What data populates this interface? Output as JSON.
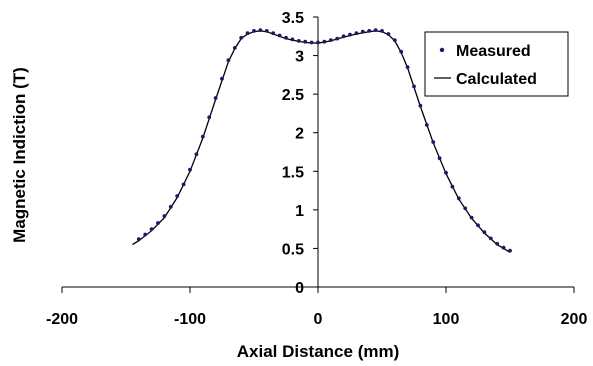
{
  "chart_data": {
    "type": "scatter",
    "title": "",
    "xlabel": "Axial Distance (mm)",
    "ylabel": "Magnetic Indiction (T)",
    "xlim": [
      -200,
      200
    ],
    "ylim": [
      0,
      3.5
    ],
    "xticks": [
      "-200",
      "-100",
      "0",
      "100",
      "200"
    ],
    "yticks": [
      "0",
      "0.5",
      "1",
      "1.5",
      "2",
      "2.5",
      "3",
      "3.5"
    ],
    "grid": false,
    "legend_position": "top-right",
    "colors": {
      "measured": "#1a1a66",
      "calculated": "#000000"
    },
    "series": [
      {
        "name": "Measured",
        "style": "markers",
        "x": [
          -140,
          -135,
          -130,
          -125,
          -120,
          -115,
          -110,
          -105,
          -100,
          -95,
          -90,
          -85,
          -80,
          -75,
          -70,
          -65,
          -60,
          -55,
          -50,
          -45,
          -40,
          -35,
          -30,
          -25,
          -20,
          -15,
          -10,
          -5,
          0,
          5,
          10,
          15,
          20,
          25,
          30,
          35,
          40,
          45,
          50,
          55,
          60,
          65,
          70,
          75,
          80,
          85,
          90,
          95,
          100,
          105,
          110,
          115,
          120,
          125,
          130,
          135,
          140,
          145,
          150
        ],
        "y": [
          0.62,
          0.68,
          0.75,
          0.83,
          0.92,
          1.04,
          1.18,
          1.33,
          1.52,
          1.72,
          1.95,
          2.2,
          2.45,
          2.7,
          2.94,
          3.1,
          3.23,
          3.29,
          3.32,
          3.33,
          3.32,
          3.29,
          3.26,
          3.23,
          3.21,
          3.19,
          3.18,
          3.17,
          3.17,
          3.18,
          3.2,
          3.22,
          3.25,
          3.27,
          3.29,
          3.31,
          3.32,
          3.33,
          3.32,
          3.28,
          3.2,
          3.05,
          2.85,
          2.6,
          2.35,
          2.1,
          1.88,
          1.67,
          1.48,
          1.3,
          1.15,
          1.02,
          0.9,
          0.8,
          0.71,
          0.63,
          0.56,
          0.51,
          0.47
        ]
      },
      {
        "name": "Calculated",
        "style": "line",
        "x": [
          -145,
          -140,
          -130,
          -120,
          -110,
          -100,
          -90,
          -80,
          -70,
          -65,
          -60,
          -55,
          -50,
          -45,
          -40,
          -35,
          -30,
          -25,
          -20,
          -10,
          0,
          10,
          20,
          30,
          40,
          45,
          50,
          55,
          60,
          65,
          70,
          80,
          90,
          100,
          110,
          120,
          130,
          140,
          150
        ],
        "y": [
          0.55,
          0.6,
          0.73,
          0.9,
          1.16,
          1.5,
          1.93,
          2.43,
          2.92,
          3.09,
          3.22,
          3.28,
          3.31,
          3.32,
          3.31,
          3.28,
          3.25,
          3.22,
          3.2,
          3.17,
          3.16,
          3.19,
          3.24,
          3.28,
          3.31,
          3.32,
          3.31,
          3.27,
          3.19,
          3.04,
          2.84,
          2.34,
          1.87,
          1.47,
          1.14,
          0.89,
          0.7,
          0.55,
          0.45
        ]
      }
    ]
  }
}
